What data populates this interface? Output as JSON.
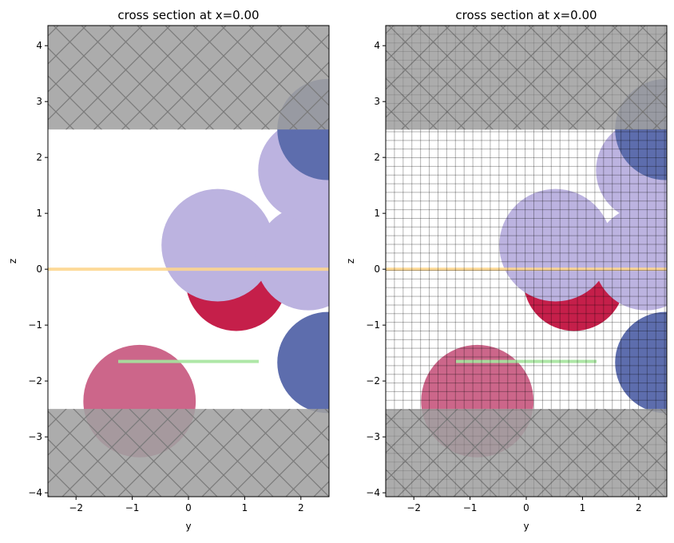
{
  "chart_data": [
    {
      "type": "cross-section",
      "title": "cross section at x=0.00",
      "xlabel": "y",
      "ylabel": "z",
      "xlim": [
        -2.5,
        2.5
      ],
      "ylim": [
        -4.07,
        4.36
      ],
      "xticks": [
        -2,
        -1,
        0,
        1,
        2
      ],
      "yticks": [
        -4,
        -3,
        -2,
        -1,
        0,
        1,
        2,
        3,
        4
      ],
      "grid": false,
      "boxes": [
        {
          "zmin": 2.5,
          "zmax": 4.36,
          "color": "#a0a0a0",
          "hatch": "x"
        },
        {
          "zmin": -4.07,
          "zmax": -2.5,
          "color": "#a0a0a0",
          "hatch": "x"
        }
      ],
      "circles": [
        {
          "y": 0.85,
          "z": -0.2,
          "r": 0.9,
          "color": "#c51f4a"
        },
        {
          "y": 0.52,
          "z": 0.43,
          "r": 1.0,
          "color": "#bcb3e0"
        },
        {
          "y": 2.13,
          "z": 0.2,
          "r": 0.93,
          "color": "#bcb3e0"
        },
        {
          "y": 2.14,
          "z": 1.77,
          "r": 0.9,
          "color": "#bcb3e0"
        },
        {
          "y": 2.48,
          "z": 2.5,
          "r": 0.9,
          "color": "#5d6dad"
        },
        {
          "y": 2.48,
          "z": -1.67,
          "r": 0.9,
          "color": "#5d6dad"
        },
        {
          "y": -0.87,
          "z": -2.36,
          "r": 1.0,
          "color": "#cc668a"
        }
      ],
      "lines": [
        {
          "y0": -2.5,
          "y1": 2.5,
          "z": 0.0,
          "color": "#fdd68f"
        },
        {
          "y0": -1.25,
          "y1": 1.25,
          "z": -1.65,
          "color": "#a6e59e"
        }
      ],
      "mesh": false
    },
    {
      "type": "cross-section",
      "title": "cross section at x=0.00",
      "xlabel": "y",
      "ylabel": "z",
      "xlim": [
        -2.5,
        2.5
      ],
      "ylim": [
        -4.07,
        4.36
      ],
      "xticks": [
        -2,
        -1,
        0,
        1,
        2
      ],
      "yticks": [
        -4,
        -3,
        -2,
        -1,
        0,
        1,
        2,
        3,
        4
      ],
      "grid": false,
      "mesh": true,
      "mesh_step": 0.155
    }
  ]
}
